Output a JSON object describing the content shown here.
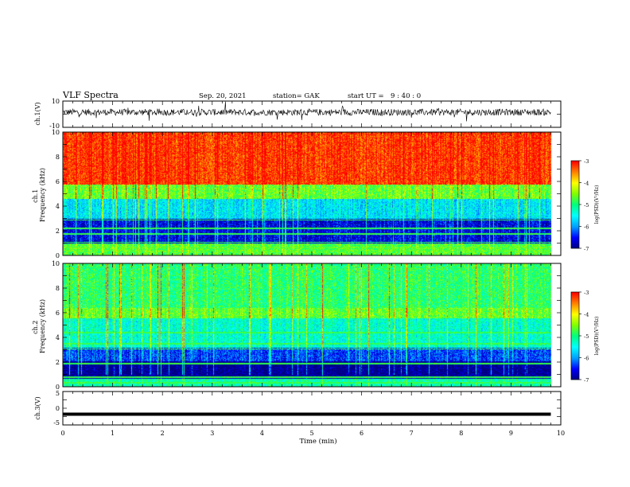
{
  "header": {
    "title": "VLF Spectra",
    "date": "Sep. 20, 2021",
    "station": "station= GAK",
    "start_label": "start  UT =",
    "start_value": "9 : 40 : 0"
  },
  "chart_data": [
    {
      "type": "line",
      "id": "ch1-waveform",
      "ylabel": "ch.1(V)",
      "ylim": [
        -10,
        10
      ],
      "ytick_labels": [
        "10",
        "-10"
      ],
      "series": [
        {
          "level": 1.5,
          "noise": "dense spiky trace roughly between -5 and 5, occasional spikes to ±8"
        }
      ]
    },
    {
      "type": "heatmap",
      "id": "ch1-spectrogram",
      "ylabel": "ch.1 Frequency (kHz)",
      "ylim": [
        0,
        10
      ],
      "ytick_labels": [
        "0",
        "2",
        "4",
        "6",
        "8",
        "10"
      ],
      "zlim": [
        -7,
        -3
      ],
      "colorbar_label": "log(PSD)(V²/Hz)",
      "colorbar_ticks": [
        "-3",
        "-4",
        "-5",
        "-6",
        "-7"
      ],
      "bands_kHz": [
        {
          "from": 0,
          "to": 1.0,
          "level": -4.7
        },
        {
          "from": 1.0,
          "to": 3.0,
          "level": -6.6
        },
        {
          "from": 3.0,
          "to": 4.6,
          "level": -5.6
        },
        {
          "from": 4.6,
          "to": 5.8,
          "level": -4.6
        },
        {
          "from": 5.8,
          "to": 10,
          "level": -3.2
        }
      ],
      "lines_kHz": [
        0.4,
        0.7,
        1.1,
        1.75,
        2.25,
        2.9
      ]
    },
    {
      "type": "heatmap",
      "id": "ch2-spectrogram",
      "ylabel": "ch.2 Frequency (kHz)",
      "ylim": [
        0,
        10
      ],
      "ytick_labels": [
        "0",
        "2",
        "4",
        "6",
        "8",
        "10"
      ],
      "zlim": [
        -7,
        -3
      ],
      "colorbar_label": "log(PSD)(V²/Hz)",
      "colorbar_ticks": [
        "-3",
        "-4",
        "-5",
        "-6",
        "-7"
      ],
      "bands_kHz": [
        {
          "from": 0,
          "to": 0.7,
          "level": -5.2
        },
        {
          "from": 0.7,
          "to": 2.1,
          "level": -7.0
        },
        {
          "from": 2.1,
          "to": 3.2,
          "level": -6.3
        },
        {
          "from": 3.2,
          "to": 5.6,
          "level": -5.3
        },
        {
          "from": 5.6,
          "to": 6.4,
          "level": -4.6
        },
        {
          "from": 6.4,
          "to": 10,
          "level": -4.9
        }
      ],
      "lines_kHz": [
        0.35,
        0.8,
        1.9,
        3.1,
        3.5,
        4.4,
        6.0
      ]
    },
    {
      "type": "line",
      "id": "ch3-waveform",
      "ylabel": "ch.3(V)",
      "ylim": [
        -5,
        5
      ],
      "ytick_labels": [
        "5",
        "0",
        "-5"
      ],
      "series": [
        {
          "level": -1.8
        }
      ]
    }
  ],
  "xaxis": {
    "label": "Time (min)",
    "range": [
      0,
      10
    ],
    "tick_labels": [
      "0",
      "1",
      "2",
      "3",
      "4",
      "5",
      "6",
      "7",
      "8",
      "9",
      "10"
    ],
    "data_end": 9.8
  },
  "colors": {
    "colormap": [
      "#000080",
      "#0000ff",
      "#00a0ff",
      "#00ffff",
      "#00ff80",
      "#80ff00",
      "#ffff00",
      "#ff8000",
      "#ff0000"
    ]
  }
}
